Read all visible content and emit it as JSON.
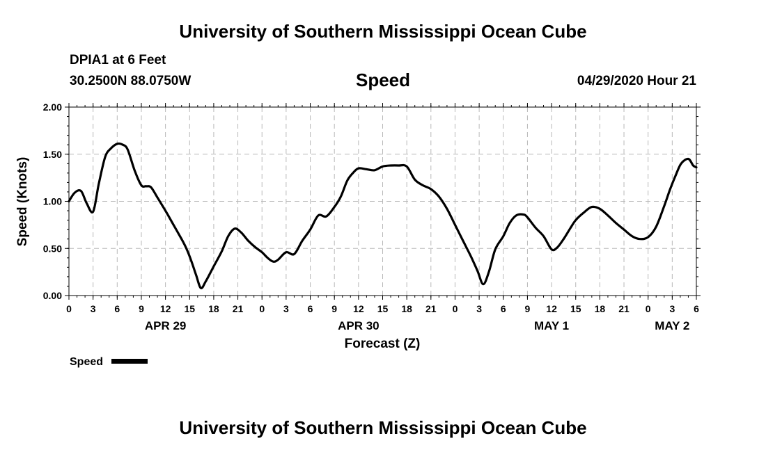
{
  "header": {
    "title": "University of Southern Mississippi Ocean Cube",
    "station": "DPIA1 at 6 Feet",
    "coords": "30.2500N 88.0750W",
    "variable": "Speed",
    "timestamp": "04/29/2020 Hour 21"
  },
  "footer": {
    "title": "University of Southern Mississippi Ocean Cube"
  },
  "chart_data": {
    "type": "line",
    "title": "Speed",
    "ylabel": "Speed (Knots)",
    "xlabel": "Forecast (Z)",
    "ylim": [
      0,
      2
    ],
    "xlim_hours": [
      0,
      78
    ],
    "yticks": [
      0,
      0.5,
      1.0,
      1.5,
      2.0
    ],
    "ytick_labels": [
      "0.00",
      "0.50",
      "1.00",
      "1.50",
      "2.00"
    ],
    "xticks_hours": [
      0,
      3,
      6,
      9,
      12,
      15,
      18,
      21,
      24,
      27,
      30,
      33,
      36,
      39,
      42,
      45,
      48,
      51,
      54,
      57,
      60,
      63,
      66,
      69,
      72,
      75,
      78
    ],
    "xtick_labels": [
      "0",
      "3",
      "6",
      "9",
      "12",
      "15",
      "18",
      "21",
      "0",
      "3",
      "6",
      "9",
      "12",
      "15",
      "18",
      "21",
      "0",
      "3",
      "6",
      "9",
      "12",
      "15",
      "18",
      "21",
      "0",
      "3",
      "6"
    ],
    "date_labels": [
      {
        "hour": 12,
        "label": "APR 29"
      },
      {
        "hour": 36,
        "label": "APR 30"
      },
      {
        "hour": 60,
        "label": "MAY 1"
      },
      {
        "hour": 75,
        "label": "MAY 2"
      }
    ],
    "grid": true,
    "legend": {
      "label": "Speed",
      "placement": "bottom-left"
    },
    "series": [
      {
        "name": "Speed",
        "color": "#000000",
        "x": [
          0,
          0.7,
          1.5,
          2.2,
          3,
          3.7,
          4.5,
          5.2,
          6,
          6.7,
          7.3,
          8.2,
          9,
          9.6,
          10.2,
          11,
          12,
          13,
          14,
          14.6,
          15.2,
          15.8,
          16.4,
          17,
          18,
          19,
          19.8,
          20.6,
          21.4,
          22.3,
          23.2,
          24,
          24.7,
          25.4,
          26,
          27,
          28,
          29,
          30,
          31,
          32,
          33,
          33.8,
          34.6,
          35.3,
          36,
          37,
          38,
          39,
          40,
          41,
          42,
          43,
          44,
          45,
          46,
          47,
          48,
          49,
          50,
          50.8,
          51.5,
          52.2,
          53,
          54,
          54.8,
          55.6,
          56.5,
          57,
          58,
          59,
          60,
          60.7,
          61.5,
          62.3,
          63,
          64,
          65,
          66,
          67,
          68,
          69,
          70,
          71,
          72,
          73,
          74,
          74.7,
          75.4,
          76.1,
          77,
          77.6,
          78
        ],
        "values": [
          1.0,
          1.09,
          1.11,
          0.98,
          0.89,
          1.18,
          1.47,
          1.56,
          1.61,
          1.6,
          1.55,
          1.32,
          1.17,
          1.16,
          1.15,
          1.04,
          0.9,
          0.75,
          0.6,
          0.5,
          0.37,
          0.22,
          0.08,
          0.15,
          0.31,
          0.47,
          0.63,
          0.71,
          0.67,
          0.58,
          0.51,
          0.46,
          0.4,
          0.36,
          0.38,
          0.46,
          0.44,
          0.58,
          0.7,
          0.85,
          0.84,
          0.94,
          1.05,
          1.22,
          1.3,
          1.35,
          1.34,
          1.33,
          1.37,
          1.38,
          1.38,
          1.37,
          1.23,
          1.17,
          1.13,
          1.05,
          0.92,
          0.75,
          0.58,
          0.41,
          0.26,
          0.12,
          0.25,
          0.49,
          0.63,
          0.77,
          0.85,
          0.86,
          0.83,
          0.72,
          0.63,
          0.49,
          0.51,
          0.6,
          0.71,
          0.8,
          0.88,
          0.94,
          0.92,
          0.85,
          0.77,
          0.7,
          0.63,
          0.6,
          0.62,
          0.73,
          0.95,
          1.12,
          1.27,
          1.4,
          1.45,
          1.38,
          1.36
        ]
      }
    ]
  }
}
